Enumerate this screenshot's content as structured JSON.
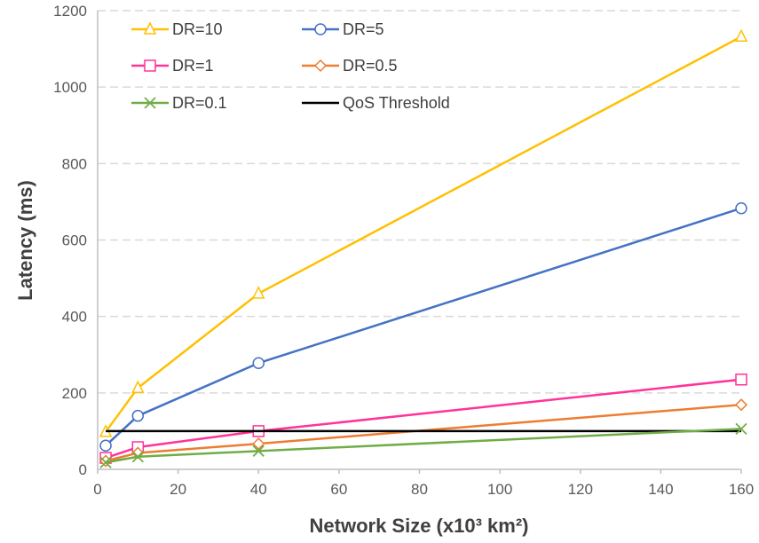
{
  "chart_data": {
    "type": "line",
    "xlabel": "Network Size (x10³ km²)",
    "ylabel": "Latency (ms)",
    "xlim": [
      0,
      160
    ],
    "ylim": [
      0,
      1200
    ],
    "x_ticks": [
      0,
      20,
      40,
      60,
      80,
      100,
      120,
      140,
      160
    ],
    "y_ticks": [
      0,
      200,
      400,
      600,
      800,
      1000,
      1200
    ],
    "grid": "horizontal dashed",
    "legend_position": "top-left, inside plot, two columns",
    "series": [
      {
        "name": "DR=10",
        "color": "#FFC000",
        "marker": "triangle",
        "x": [
          2,
          10,
          40,
          160
        ],
        "y": [
          98,
          213,
          460,
          1132
        ]
      },
      {
        "name": "DR=5",
        "color": "#4472C4",
        "marker": "circle",
        "x": [
          2,
          10,
          40,
          160
        ],
        "y": [
          62,
          140,
          278,
          683
        ]
      },
      {
        "name": "DR=1",
        "color": "#FF3399",
        "marker": "square",
        "x": [
          2,
          10,
          40,
          160
        ],
        "y": [
          30,
          58,
          100,
          235
        ]
      },
      {
        "name": "DR=0.5",
        "color": "#ED7D31",
        "marker": "diamond",
        "x": [
          2,
          10,
          40,
          160
        ],
        "y": [
          22,
          43,
          67,
          169
        ]
      },
      {
        "name": "DR=0.1",
        "color": "#70AD47",
        "marker": "x",
        "x": [
          2,
          10,
          40,
          160
        ],
        "y": [
          18,
          33,
          48,
          106
        ]
      },
      {
        "name": "QoS Threshold",
        "color": "#000000",
        "marker": "none",
        "x": [
          2,
          160
        ],
        "y": [
          100,
          100
        ]
      }
    ]
  }
}
